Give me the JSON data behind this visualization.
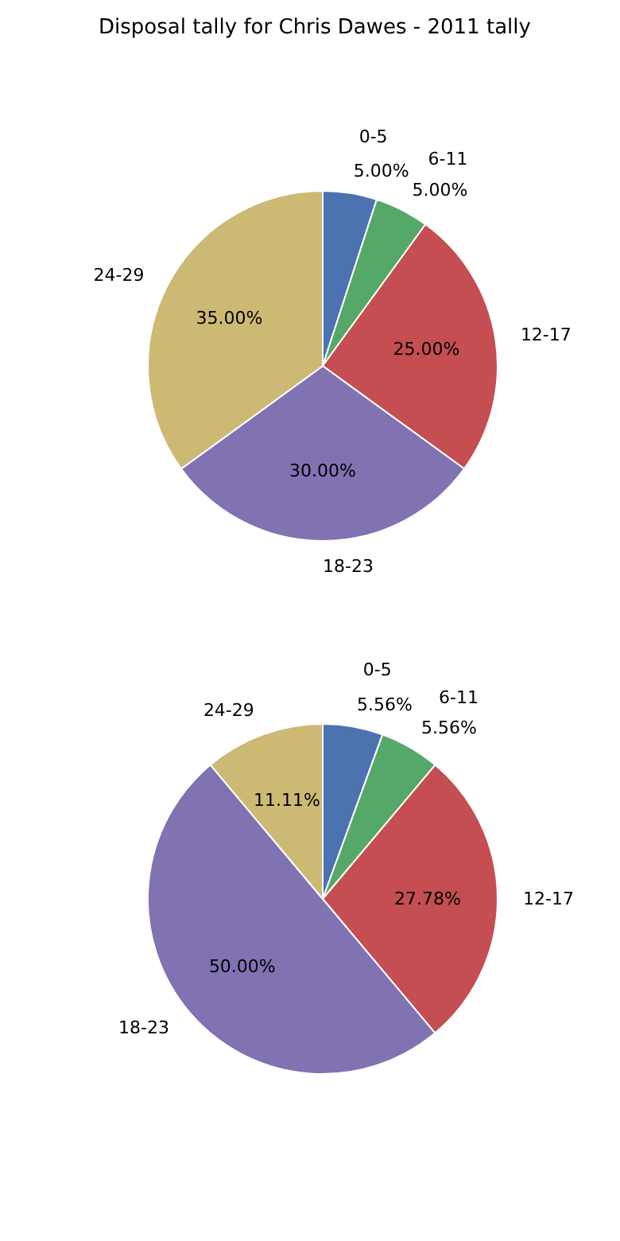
{
  "chart_data": [
    {
      "type": "pie",
      "title": "Disposal tally for Chris Dawes - 2011 tally",
      "categories": [
        "0-5",
        "6-11",
        "12-17",
        "18-23",
        "24-29"
      ],
      "values": [
        5,
        5,
        25,
        30,
        35
      ],
      "value_labels": [
        "5.00%",
        "5.00%",
        "25.00%",
        "30.00%",
        "35.00%"
      ],
      "colors": [
        "#4c72b0",
        "#55a868",
        "#c44e52",
        "#8172b2",
        "#ccb974"
      ]
    },
    {
      "type": "pie",
      "categories": [
        "0-5",
        "6-11",
        "12-17",
        "18-23",
        "24-29"
      ],
      "values": [
        5.56,
        5.56,
        27.78,
        50,
        11.11
      ],
      "value_labels": [
        "5.56%",
        "5.56%",
        "27.78%",
        "50.00%",
        "11.11%"
      ],
      "colors": [
        "#4c72b0",
        "#55a868",
        "#c44e52",
        "#8172b2",
        "#ccb974"
      ]
    }
  ]
}
